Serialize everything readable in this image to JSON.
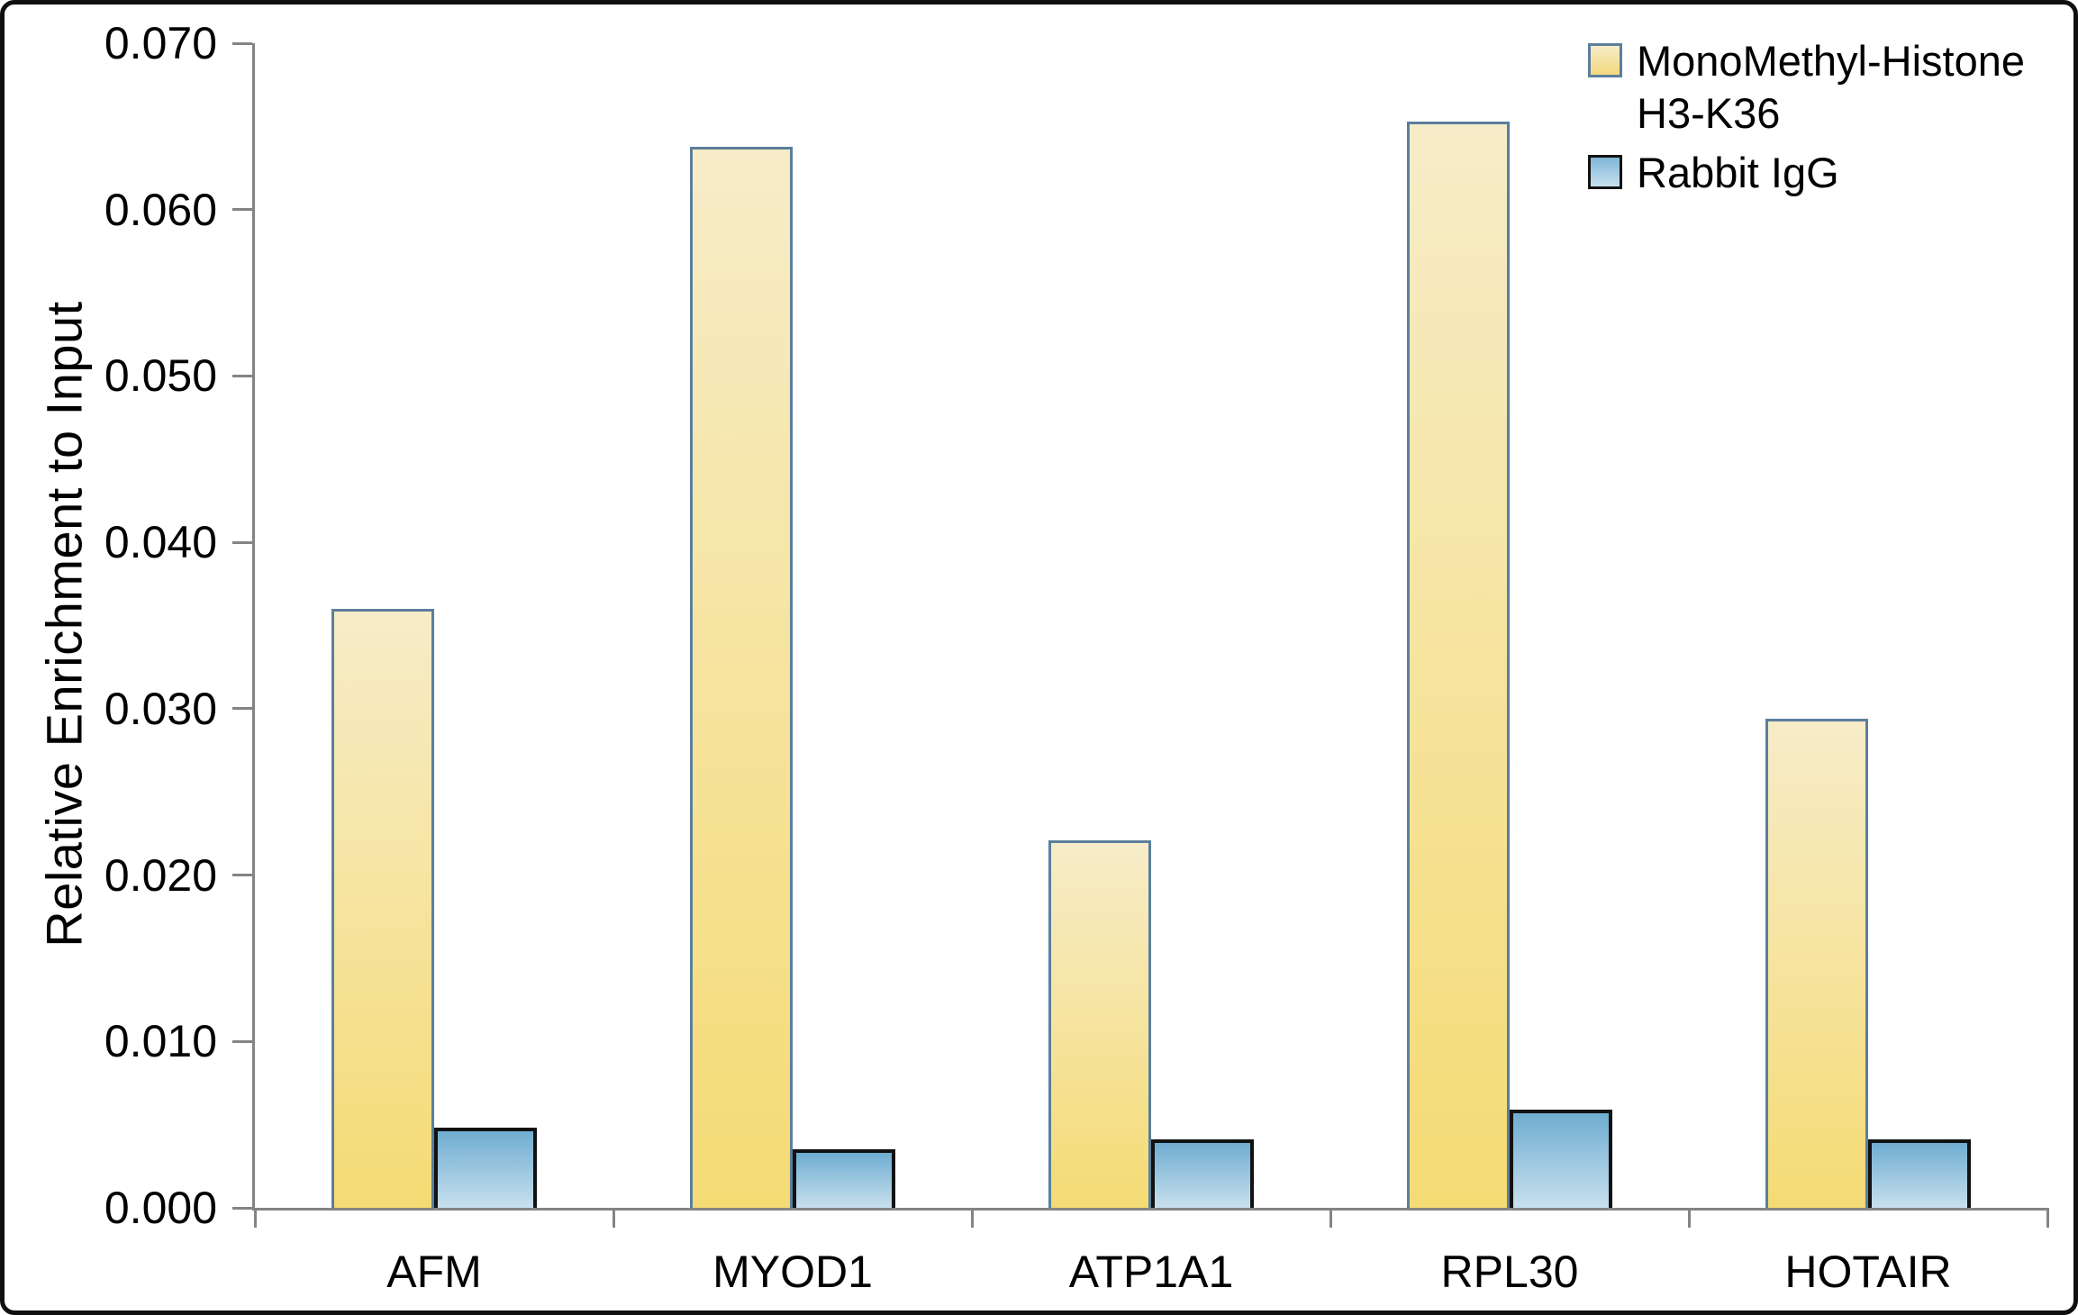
{
  "chart_data": {
    "type": "bar",
    "title": "",
    "xlabel": "",
    "ylabel": "Relative Enrichment to Input",
    "categories": [
      "AFM",
      "MYOD1",
      "ATP1A1",
      "RPL30",
      "HOTAIR"
    ],
    "series": [
      {
        "name": "MonoMethyl-Histone H3-K36",
        "values": [
          0.036,
          0.0638,
          0.0221,
          0.0653,
          0.0294
        ],
        "fill_top": "#F6ECC8",
        "fill_bottom": "#F5DB74",
        "border": "#5B7F9C"
      },
      {
        "name": "Rabbit IgG",
        "values": [
          0.0048,
          0.0035,
          0.0041,
          0.0059,
          0.0041
        ],
        "fill_top": "#6FADD1",
        "fill_bottom": "#C8E0EE",
        "border": "#121212"
      }
    ],
    "ylim": [
      0,
      0.07
    ],
    "ytick_step": 0.01,
    "yticks": [
      "0.000",
      "0.010",
      "0.020",
      "0.030",
      "0.040",
      "0.050",
      "0.060",
      "0.070"
    ],
    "grid": false,
    "legend_position": "top-right",
    "axis_color": "#848484",
    "text_color": "#000000"
  }
}
